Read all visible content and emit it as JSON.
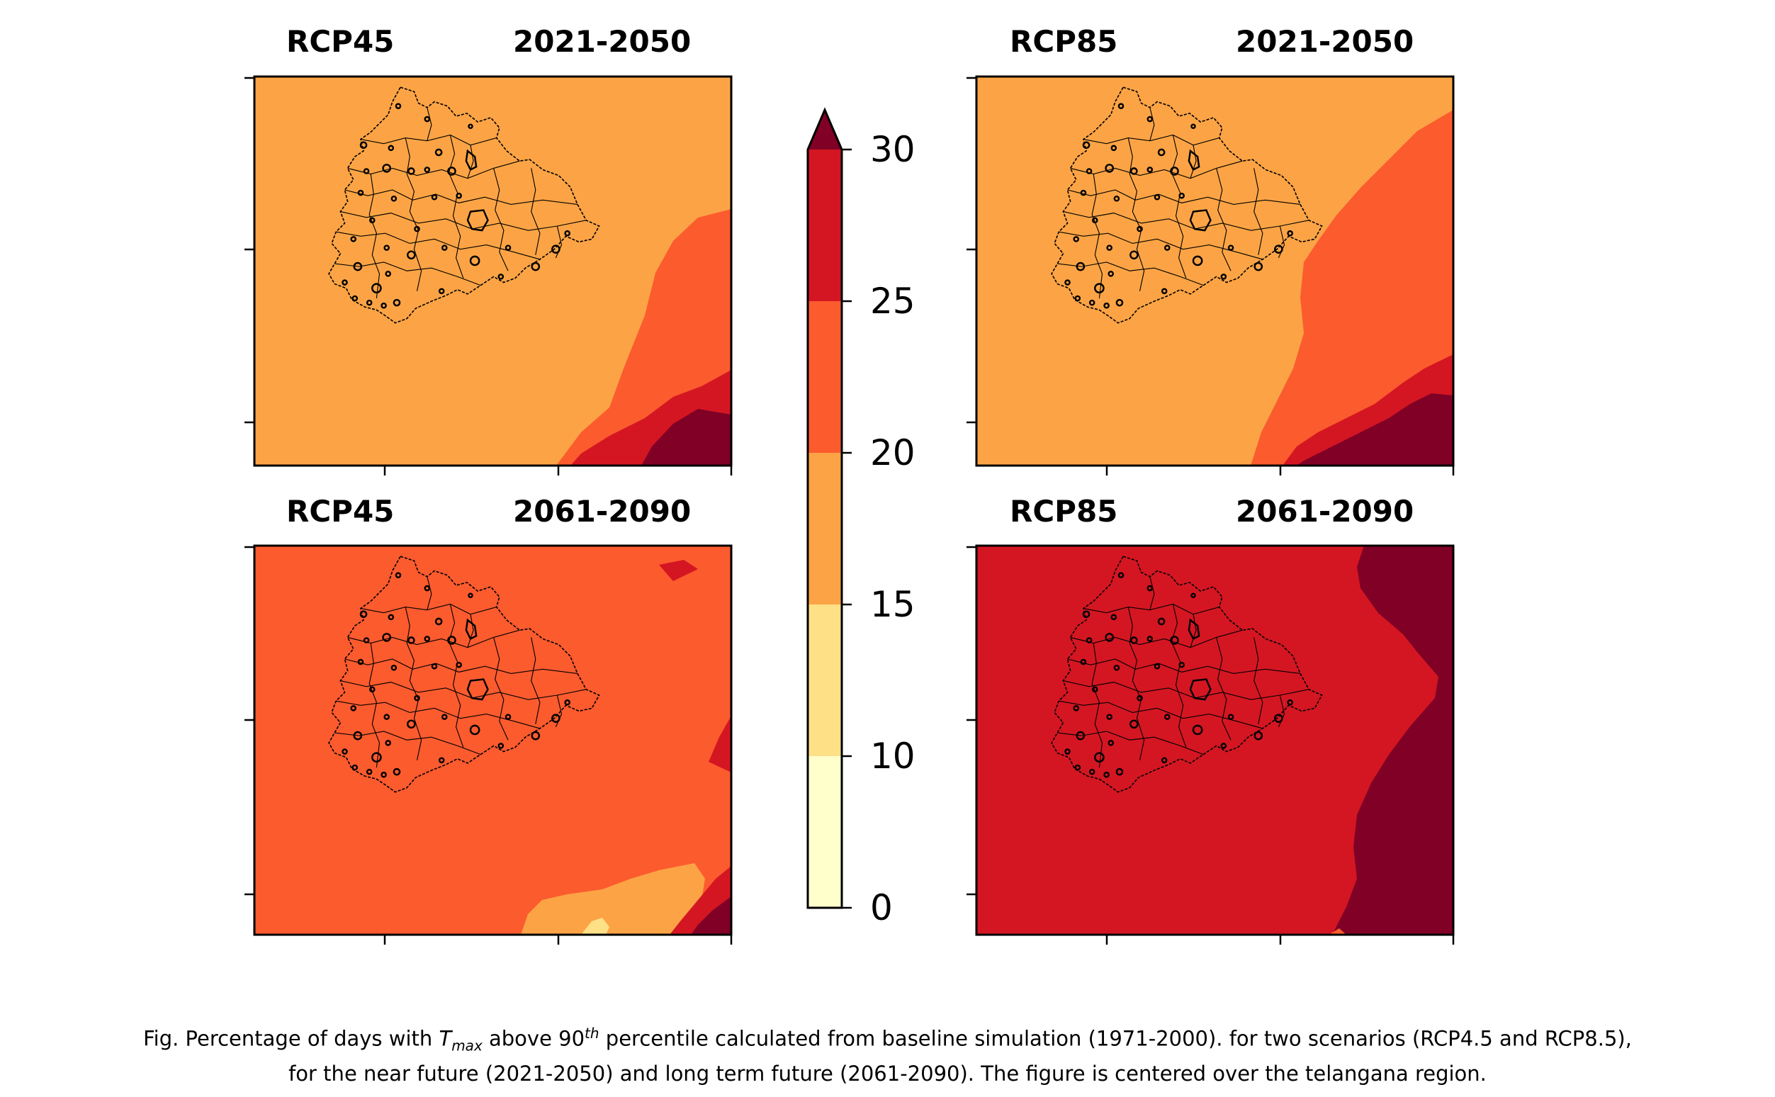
{
  "panels": [
    {
      "scenario": "RCP45",
      "period": "2021-2050",
      "background": "#fca445"
    },
    {
      "scenario": "RCP85",
      "period": "2021-2050",
      "background": "#fca445"
    },
    {
      "scenario": "RCP45",
      "period": "2061-2090",
      "background": "#fc5b2e"
    },
    {
      "scenario": "RCP85",
      "period": "2061-2090",
      "background": "#d41622"
    }
  ],
  "colorbar": {
    "levels": [
      0,
      10,
      15,
      20,
      25,
      30
    ],
    "labels": [
      "0",
      "10",
      "15",
      "20",
      "25",
      "30"
    ],
    "colors": [
      "#ffffcc",
      "#fee087",
      "#fca445",
      "#fc5b2e",
      "#d41622",
      "#800026"
    ],
    "extend": "max"
  },
  "caption": {
    "line1_pre": "Fig. Percentage of days with ",
    "tmax_T": "T",
    "tmax_sub": "max",
    "line1_mid": " above 90",
    "line1_sup": "th",
    "line1_post": " percentile calculated from baseline simulation (1971-2000). for two scenarios (RCP4.5 and RCP8.5),",
    "line2": "for the near future (2021-2050) and long term future (2061-2090). The figure is centered over the telangana region."
  }
}
